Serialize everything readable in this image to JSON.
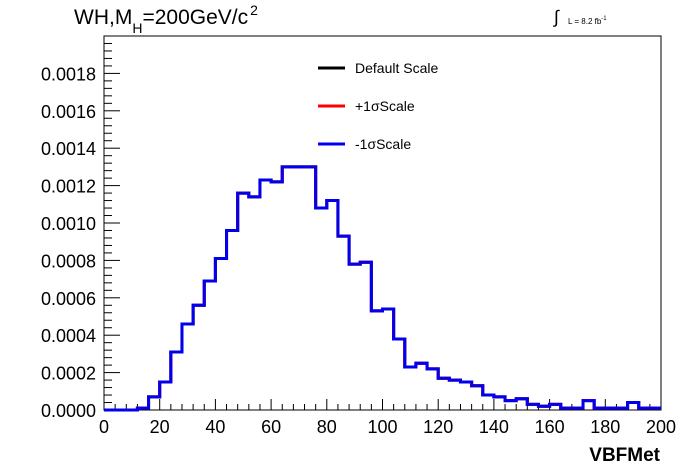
{
  "title": {
    "prefix": "WH,M",
    "subscript": "H",
    "suffix": "=200GeV/c",
    "superscript": "2"
  },
  "luminosity": {
    "integral_symbol": "∫",
    "text": "L = 8.2 fb",
    "superscript": "-1"
  },
  "chart_data": {
    "type": "histogram",
    "title": "WH,M_H=200GeV/c^2",
    "xlabel": "VBFMet",
    "ylabel": "",
    "xlim": [
      0,
      200
    ],
    "ylim": [
      0,
      0.002
    ],
    "x_ticks": [
      "0",
      "20",
      "40",
      "60",
      "80",
      "100",
      "120",
      "140",
      "160",
      "180",
      "200"
    ],
    "y_ticks": [
      "0.0000",
      "0.0002",
      "0.0004",
      "0.0006",
      "0.0008",
      "0.0010",
      "0.0012",
      "0.0014",
      "0.0016",
      "0.0018"
    ],
    "legend_position": "top-center",
    "bin_edges": [
      0,
      4,
      8,
      12,
      16,
      20,
      24,
      28,
      32,
      36,
      40,
      44,
      48,
      52,
      56,
      60,
      64,
      68,
      72,
      76,
      80,
      84,
      88,
      92,
      96,
      100,
      104,
      108,
      112,
      116,
      120,
      124,
      128,
      132,
      136,
      140,
      144,
      148,
      152,
      156,
      160,
      164,
      168,
      172,
      176,
      180,
      184,
      188,
      192,
      196,
      200
    ],
    "series": [
      {
        "name": "Default Scale",
        "color": "#000000",
        "values": [
          0,
          0,
          0,
          1e-05,
          7e-05,
          0.00015,
          0.00031,
          0.00046,
          0.00056,
          0.00069,
          0.00081,
          0.00096,
          0.00116,
          0.00114,
          0.00123,
          0.00122,
          0.0013,
          0.0013,
          0.0013,
          0.00108,
          0.00112,
          0.00093,
          0.00078,
          0.00079,
          0.00053,
          0.00054,
          0.00038,
          0.00023,
          0.00025,
          0.00022,
          0.00017,
          0.00016,
          0.00015,
          0.00013,
          8e-05,
          7e-05,
          5e-05,
          6e-05,
          3e-05,
          2e-05,
          3e-05,
          1e-05,
          1e-05,
          5e-05,
          1e-05,
          1e-05,
          1e-05,
          4e-05,
          1e-05,
          1e-05
        ]
      },
      {
        "name": "+1σScale",
        "color": "#ff0000",
        "values": [
          0,
          0,
          0,
          1e-05,
          7e-05,
          0.00015,
          0.00031,
          0.00046,
          0.00056,
          0.00069,
          0.00081,
          0.00096,
          0.00116,
          0.00114,
          0.00123,
          0.00122,
          0.0013,
          0.0013,
          0.0013,
          0.00108,
          0.00112,
          0.00093,
          0.00078,
          0.00079,
          0.00053,
          0.00054,
          0.00038,
          0.00023,
          0.00025,
          0.00022,
          0.00017,
          0.00016,
          0.00015,
          0.00013,
          8e-05,
          7e-05,
          5e-05,
          6e-05,
          3e-05,
          2e-05,
          3e-05,
          1e-05,
          1e-05,
          5e-05,
          1e-05,
          1e-05,
          1e-05,
          4e-05,
          1e-05,
          1e-05
        ]
      },
      {
        "name": "-1σScale",
        "color": "#0000ee",
        "values": [
          0,
          0,
          0,
          1e-05,
          7e-05,
          0.00015,
          0.00031,
          0.00046,
          0.00056,
          0.00069,
          0.00081,
          0.00096,
          0.00116,
          0.00114,
          0.00123,
          0.00122,
          0.0013,
          0.0013,
          0.0013,
          0.00108,
          0.00112,
          0.00093,
          0.00078,
          0.00079,
          0.00053,
          0.00054,
          0.00038,
          0.00023,
          0.00025,
          0.00022,
          0.00017,
          0.00016,
          0.00015,
          0.00013,
          8e-05,
          7e-05,
          5e-05,
          6e-05,
          3e-05,
          2e-05,
          3e-05,
          1e-05,
          1e-05,
          5e-05,
          1e-05,
          1e-05,
          1e-05,
          4e-05,
          1e-05,
          1e-05
        ]
      }
    ]
  }
}
